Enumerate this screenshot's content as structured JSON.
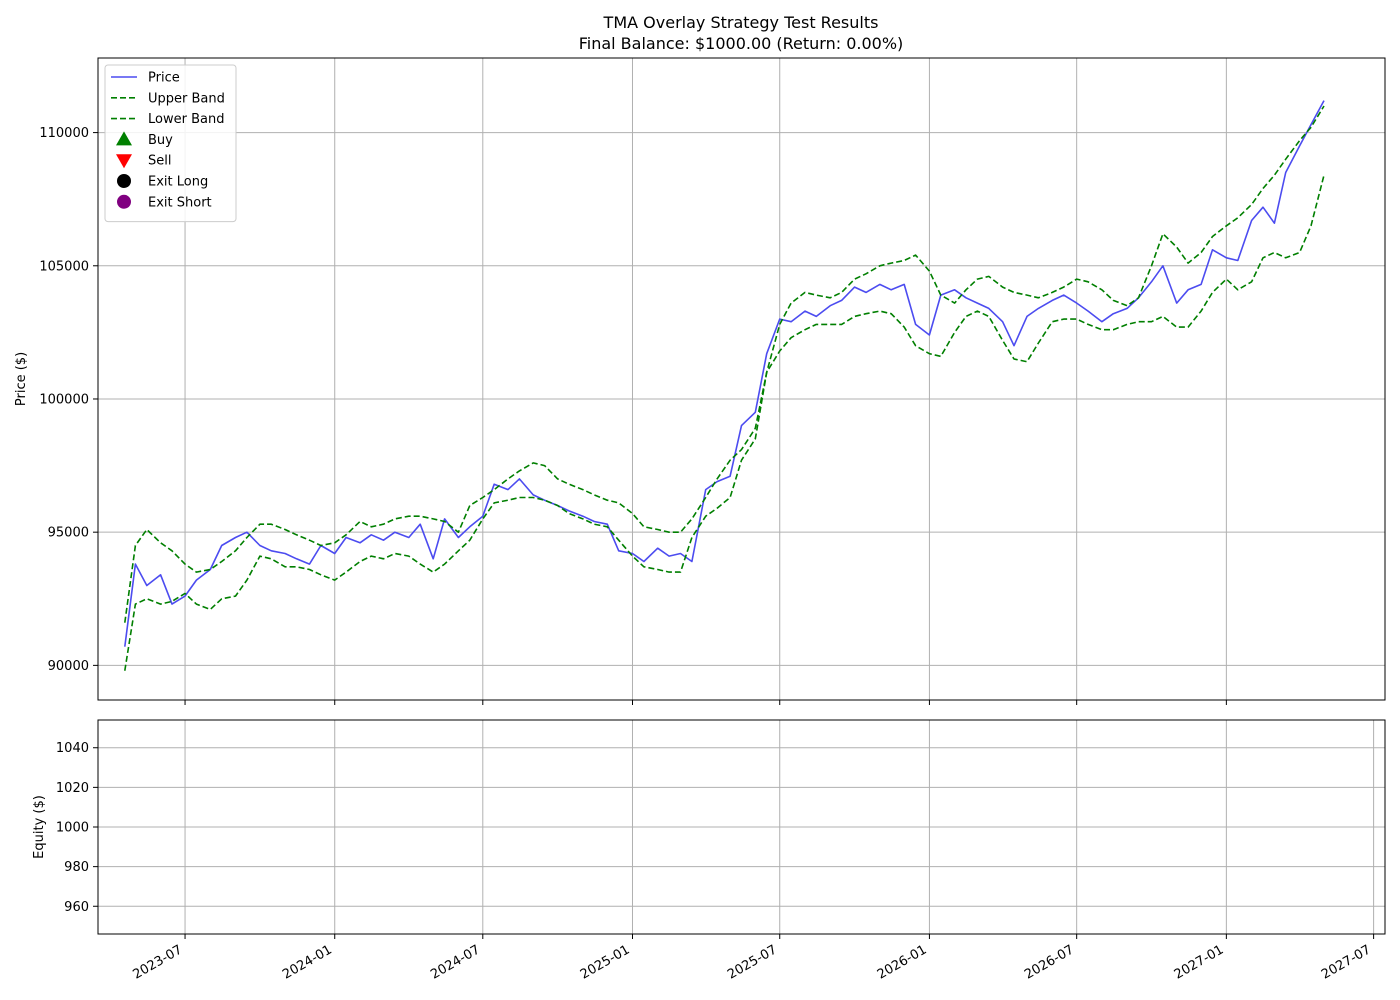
{
  "chart_data": [
    {
      "type": "line",
      "title": "TMA Overlay Strategy Test Results",
      "subtitle": "Final Balance: $1000.00 (Return: 0.00%)",
      "xlabel": "",
      "ylabel": "Price ($)",
      "xlim": [
        "2023-03-16",
        "2027-07-15"
      ],
      "ylim": [
        88700,
        112800
      ],
      "yticks": [
        90000,
        95000,
        100000,
        105000,
        110000
      ],
      "yticklabels": [
        "90000",
        "95000",
        "100000",
        "105000",
        "110000"
      ],
      "xticks": [
        "2023-07-01",
        "2024-01-01",
        "2024-07-01",
        "2025-01-01",
        "2025-07-01",
        "2026-01-01",
        "2026-07-01",
        "2027-01-01"
      ],
      "grid": true,
      "legend": {
        "placement": "upper-left",
        "entries": [
          {
            "label": "Price",
            "kind": "line",
            "color": "#4c4cf0",
            "dash": "solid"
          },
          {
            "label": "Upper Band",
            "kind": "line",
            "color": "#007f00",
            "dash": "dashed"
          },
          {
            "label": "Lower Band",
            "kind": "line",
            "color": "#007f00",
            "dash": "dashed"
          },
          {
            "label": "Buy",
            "kind": "marker",
            "marker": "triangle-up",
            "color": "#008000"
          },
          {
            "label": "Sell",
            "kind": "marker",
            "marker": "triangle-down",
            "color": "#ff0000"
          },
          {
            "label": "Exit Long",
            "kind": "marker",
            "marker": "circle",
            "color": "#000000"
          },
          {
            "label": "Exit Short",
            "kind": "marker",
            "marker": "circle",
            "color": "#800080"
          }
        ]
      },
      "series": [
        {
          "name": "Price",
          "color": "#4c4cf0",
          "x": [
            "2023-04-18",
            "2023-05-01",
            "2023-05-15",
            "2023-06-01",
            "2023-06-15",
            "2023-07-01",
            "2023-07-15",
            "2023-08-01",
            "2023-08-15",
            "2023-09-01",
            "2023-09-15",
            "2023-10-01",
            "2023-10-15",
            "2023-11-01",
            "2023-11-15",
            "2023-12-01",
            "2023-12-15",
            "2024-01-01",
            "2024-01-15",
            "2024-02-01",
            "2024-02-15",
            "2024-03-01",
            "2024-03-15",
            "2024-04-01",
            "2024-04-15",
            "2024-05-01",
            "2024-05-15",
            "2024-06-01",
            "2024-06-15",
            "2024-07-01",
            "2024-07-15",
            "2024-08-01",
            "2024-08-15",
            "2024-09-01",
            "2024-09-15",
            "2024-10-01",
            "2024-10-15",
            "2024-11-01",
            "2024-11-15",
            "2024-12-01",
            "2024-12-15",
            "2025-01-01",
            "2025-01-15",
            "2025-02-01",
            "2025-02-15",
            "2025-03-01",
            "2025-03-15",
            "2025-04-01",
            "2025-04-15",
            "2025-05-01",
            "2025-05-15",
            "2025-06-01",
            "2025-06-15",
            "2025-07-01",
            "2025-07-15",
            "2025-08-01",
            "2025-08-15",
            "2025-09-01",
            "2025-09-15",
            "2025-10-01",
            "2025-10-15",
            "2025-11-01",
            "2025-11-15",
            "2025-12-01",
            "2025-12-15",
            "2026-01-01",
            "2026-01-15",
            "2026-02-01",
            "2026-02-15",
            "2026-03-01",
            "2026-03-15",
            "2026-04-01",
            "2026-04-15",
            "2026-05-01",
            "2026-05-15",
            "2026-06-01",
            "2026-06-15",
            "2026-07-01",
            "2026-07-15",
            "2026-08-01",
            "2026-08-15",
            "2026-09-01",
            "2026-09-15",
            "2026-10-01",
            "2026-10-15",
            "2026-11-01",
            "2026-11-15",
            "2026-12-01",
            "2026-12-15",
            "2027-01-01",
            "2027-01-15",
            "2027-02-01",
            "2027-02-15",
            "2027-03-01",
            "2027-03-15",
            "2027-04-01",
            "2027-04-15",
            "2027-05-01"
          ],
          "y": [
            90700,
            93800,
            93000,
            93400,
            92300,
            92600,
            93200,
            93600,
            94500,
            94800,
            95000,
            94500,
            94300,
            94200,
            94000,
            93800,
            94500,
            94200,
            94800,
            94600,
            94900,
            94700,
            95000,
            94800,
            95300,
            94000,
            95500,
            94800,
            95200,
            95600,
            96800,
            96600,
            97000,
            96400,
            96200,
            96000,
            95800,
            95600,
            95400,
            95300,
            94300,
            94200,
            93900,
            94400,
            94100,
            94200,
            93900,
            96600,
            96900,
            97100,
            99000,
            99500,
            101700,
            103000,
            102900,
            103300,
            103100,
            103500,
            103700,
            104200,
            104000,
            104300,
            104100,
            104300,
            102800,
            102400,
            103900,
            104100,
            103800,
            103600,
            103400,
            102900,
            102000,
            103100,
            103400,
            103700,
            103900,
            103600,
            103300,
            102900,
            103200,
            103400,
            103800,
            104400,
            105000,
            103600,
            104100,
            104300,
            105600,
            105300,
            105200,
            106700,
            107200,
            106600,
            108500,
            109500,
            110300,
            111200
          ]
        },
        {
          "name": "Upper Band",
          "color": "#007f00",
          "x": [
            "2023-04-18",
            "2023-05-01",
            "2023-05-15",
            "2023-06-01",
            "2023-06-15",
            "2023-07-01",
            "2023-07-15",
            "2023-08-01",
            "2023-08-15",
            "2023-09-01",
            "2023-09-15",
            "2023-10-01",
            "2023-10-15",
            "2023-11-01",
            "2023-11-15",
            "2023-12-01",
            "2023-12-15",
            "2024-01-01",
            "2024-01-15",
            "2024-02-01",
            "2024-02-15",
            "2024-03-01",
            "2024-03-15",
            "2024-04-01",
            "2024-04-15",
            "2024-05-01",
            "2024-05-15",
            "2024-06-01",
            "2024-06-15",
            "2024-07-01",
            "2024-07-15",
            "2024-08-01",
            "2024-08-15",
            "2024-09-01",
            "2024-09-15",
            "2024-10-01",
            "2024-10-15",
            "2024-11-01",
            "2024-11-15",
            "2024-12-01",
            "2024-12-15",
            "2025-01-01",
            "2025-01-15",
            "2025-02-01",
            "2025-02-15",
            "2025-03-01",
            "2025-03-15",
            "2025-04-01",
            "2025-04-15",
            "2025-05-01",
            "2025-05-15",
            "2025-06-01",
            "2025-06-15",
            "2025-07-01",
            "2025-07-15",
            "2025-08-01",
            "2025-08-15",
            "2025-09-01",
            "2025-09-15",
            "2025-10-01",
            "2025-10-15",
            "2025-11-01",
            "2025-11-15",
            "2025-12-01",
            "2025-12-15",
            "2026-01-01",
            "2026-01-15",
            "2026-02-01",
            "2026-02-15",
            "2026-03-01",
            "2026-03-15",
            "2026-04-01",
            "2026-04-15",
            "2026-05-01",
            "2026-05-15",
            "2026-06-01",
            "2026-06-15",
            "2026-07-01",
            "2026-07-15",
            "2026-08-01",
            "2026-08-15",
            "2026-09-01",
            "2026-09-15",
            "2026-10-01",
            "2026-10-15",
            "2026-11-01",
            "2026-11-15",
            "2026-12-01",
            "2026-12-15",
            "2027-01-01",
            "2027-01-15",
            "2027-02-01",
            "2027-02-15",
            "2027-03-01",
            "2027-03-15",
            "2027-04-01",
            "2027-04-15",
            "2027-05-01"
          ],
          "y": [
            91600,
            94500,
            95100,
            94600,
            94300,
            93800,
            93500,
            93600,
            93900,
            94300,
            94800,
            95300,
            95300,
            95100,
            94900,
            94700,
            94500,
            94600,
            94900,
            95400,
            95200,
            95300,
            95500,
            95600,
            95600,
            95500,
            95400,
            95000,
            96000,
            96300,
            96600,
            97000,
            97300,
            97600,
            97500,
            97000,
            96800,
            96600,
            96400,
            96200,
            96100,
            95700,
            95200,
            95100,
            95000,
            95000,
            95500,
            96300,
            97000,
            97700,
            98100,
            98900,
            101000,
            102800,
            103600,
            104000,
            103900,
            103800,
            104000,
            104500,
            104700,
            105000,
            105100,
            105200,
            105400,
            104800,
            103900,
            103600,
            104100,
            104500,
            104600,
            104200,
            104000,
            103900,
            103800,
            104000,
            104200,
            104500,
            104400,
            104100,
            103700,
            103500,
            103800,
            105000,
            106200,
            105700,
            105100,
            105500,
            106100,
            106500,
            106800,
            107300,
            107900,
            108400,
            109000,
            109700,
            110200,
            111000
          ]
        },
        {
          "name": "Lower Band",
          "color": "#007f00",
          "x": [
            "2023-04-18",
            "2023-05-01",
            "2023-05-15",
            "2023-06-01",
            "2023-06-15",
            "2023-07-01",
            "2023-07-15",
            "2023-08-01",
            "2023-08-15",
            "2023-09-01",
            "2023-09-15",
            "2023-10-01",
            "2023-10-15",
            "2023-11-01",
            "2023-11-15",
            "2023-12-01",
            "2023-12-15",
            "2024-01-01",
            "2024-01-15",
            "2024-02-01",
            "2024-02-15",
            "2024-03-01",
            "2024-03-15",
            "2024-04-01",
            "2024-04-15",
            "2024-05-01",
            "2024-05-15",
            "2024-06-01",
            "2024-06-15",
            "2024-07-01",
            "2024-07-15",
            "2024-08-01",
            "2024-08-15",
            "2024-09-01",
            "2024-09-15",
            "2024-10-01",
            "2024-10-15",
            "2024-11-01",
            "2024-11-15",
            "2024-12-01",
            "2024-12-15",
            "2025-01-01",
            "2025-01-15",
            "2025-02-01",
            "2025-02-15",
            "2025-03-01",
            "2025-03-15",
            "2025-04-01",
            "2025-04-15",
            "2025-05-01",
            "2025-05-15",
            "2025-06-01",
            "2025-06-15",
            "2025-07-01",
            "2025-07-15",
            "2025-08-01",
            "2025-08-15",
            "2025-09-01",
            "2025-09-15",
            "2025-10-01",
            "2025-10-15",
            "2025-11-01",
            "2025-11-15",
            "2025-12-01",
            "2025-12-15",
            "2026-01-01",
            "2026-01-15",
            "2026-02-01",
            "2026-02-15",
            "2026-03-01",
            "2026-03-15",
            "2026-04-01",
            "2026-04-15",
            "2026-05-01",
            "2026-05-15",
            "2026-06-01",
            "2026-06-15",
            "2026-07-01",
            "2026-07-15",
            "2026-08-01",
            "2026-08-15",
            "2026-09-01",
            "2026-09-15",
            "2026-10-01",
            "2026-10-15",
            "2026-11-01",
            "2026-11-15",
            "2026-12-01",
            "2026-12-15",
            "2027-01-01",
            "2027-01-15",
            "2027-02-01",
            "2027-02-15",
            "2027-03-01",
            "2027-03-15",
            "2027-04-01",
            "2027-04-15",
            "2027-05-01"
          ],
          "y": [
            89800,
            92300,
            92500,
            92300,
            92400,
            92700,
            92300,
            92100,
            92500,
            92600,
            93200,
            94100,
            94000,
            93700,
            93700,
            93600,
            93400,
            93200,
            93500,
            93900,
            94100,
            94000,
            94200,
            94100,
            93800,
            93500,
            93800,
            94300,
            94700,
            95500,
            96100,
            96200,
            96300,
            96300,
            96200,
            96000,
            95700,
            95500,
            95300,
            95200,
            94700,
            94100,
            93700,
            93600,
            93500,
            93500,
            94800,
            95600,
            95900,
            96300,
            97700,
            98500,
            101000,
            101800,
            102300,
            102600,
            102800,
            102800,
            102800,
            103100,
            103200,
            103300,
            103200,
            102700,
            102000,
            101700,
            101600,
            102500,
            103100,
            103300,
            103100,
            102200,
            101500,
            101400,
            102100,
            102900,
            103000,
            103000,
            102800,
            102600,
            102600,
            102800,
            102900,
            102900,
            103100,
            102700,
            102700,
            103300,
            104000,
            104500,
            104100,
            104400,
            105300,
            105500,
            105300,
            105500,
            106500,
            108400
          ]
        }
      ]
    },
    {
      "type": "line",
      "title": "",
      "xlabel": "",
      "ylabel": "Equity ($)",
      "xlim": [
        "2023-03-16",
        "2027-07-15"
      ],
      "ylim": [
        946,
        1054
      ],
      "yticks": [
        960,
        980,
        1000,
        1020,
        1040
      ],
      "yticklabels": [
        "960",
        "980",
        "1000",
        "1020",
        "1040"
      ],
      "xticks": [
        "2023-07-01",
        "2024-01-01",
        "2024-07-01",
        "2025-01-01",
        "2025-07-01",
        "2026-01-01",
        "2026-07-01",
        "2027-01-01",
        "2027-07-01"
      ],
      "xticklabels": [
        "2023-07",
        "2024-01",
        "2024-07",
        "2025-01",
        "2025-07",
        "2026-01",
        "2026-07",
        "2027-01",
        "2027-07"
      ],
      "grid": true,
      "series": []
    }
  ]
}
